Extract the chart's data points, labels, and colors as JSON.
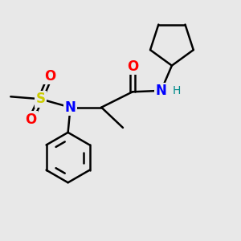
{
  "background_color": "#e8e8e8",
  "bond_color": "#000000",
  "bond_width": 1.8,
  "atom_colors": {
    "O": "#ff0000",
    "N_blue": "#0000ff",
    "N_dark": "#0000cd",
    "S": "#cccc00",
    "H": "#008b8b",
    "C": "#000000"
  },
  "font_size_atoms": 12,
  "font_size_H": 10,
  "bg": "#e8e8e8"
}
